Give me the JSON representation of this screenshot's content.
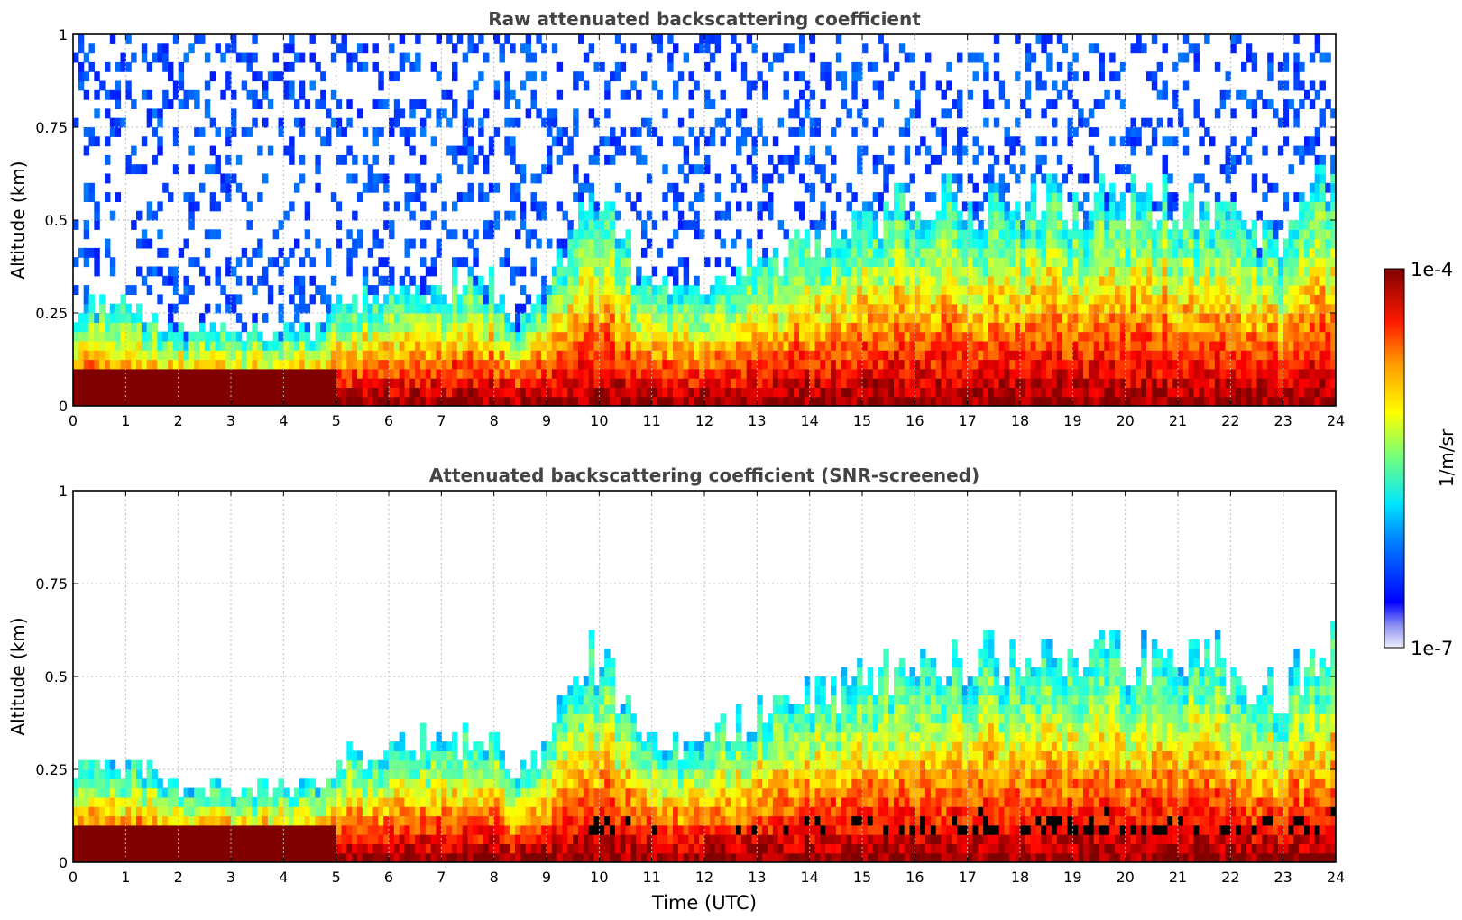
{
  "chart_data": [
    {
      "type": "heatmap",
      "title": "Raw attenuated backscattering coefficient",
      "xlabel": "",
      "ylabel": "Altitude (km)",
      "xlim": [
        0,
        24
      ],
      "ylim": [
        0,
        1
      ],
      "xticks": [
        0,
        1,
        2,
        3,
        4,
        5,
        6,
        7,
        8,
        9,
        10,
        11,
        12,
        13,
        14,
        15,
        16,
        17,
        18,
        19,
        20,
        21,
        22,
        23,
        24
      ],
      "yticks": [
        "0",
        "0.25",
        "0.5",
        "0.75",
        "1"
      ],
      "grid": true,
      "screened": false,
      "colorscale": "jet (log)",
      "approx_profile": {
        "time_utc": [
          0,
          1,
          2,
          3,
          4,
          4.8,
          5.3,
          6,
          7,
          8,
          8.4,
          9,
          9.5,
          10,
          11,
          12,
          13,
          14,
          15,
          16,
          17,
          18,
          19,
          20,
          21,
          21.8,
          22.5,
          23,
          23.8
        ],
        "layer_top_km": [
          0.26,
          0.27,
          0.2,
          0.2,
          0.2,
          0.22,
          0.3,
          0.3,
          0.33,
          0.33,
          0.22,
          0.3,
          0.5,
          0.55,
          0.3,
          0.32,
          0.4,
          0.45,
          0.5,
          0.55,
          0.55,
          0.55,
          0.55,
          0.55,
          0.55,
          0.55,
          0.45,
          0.45,
          0.6
        ]
      }
    },
    {
      "type": "heatmap",
      "title": "Attenuated backscattering coefficient (SNR-screened)",
      "xlabel": "Time (UTC)",
      "ylabel": "Altitude (km)",
      "xlim": [
        0,
        24
      ],
      "ylim": [
        0,
        1
      ],
      "xticks": [
        0,
        1,
        2,
        3,
        4,
        5,
        6,
        7,
        8,
        9,
        10,
        11,
        12,
        13,
        14,
        15,
        16,
        17,
        18,
        19,
        20,
        21,
        22,
        23,
        24
      ],
      "yticks": [
        "0",
        "0.25",
        "0.5",
        "0.75",
        "1"
      ],
      "grid": true,
      "screened": true,
      "colorscale": "jet (log)",
      "approx_profile": {
        "time_utc": [
          0,
          1,
          2,
          3,
          4,
          4.8,
          5.3,
          6,
          7,
          8,
          8.4,
          9,
          9.5,
          10,
          11,
          12,
          13,
          14,
          15,
          16,
          17,
          18,
          19,
          20,
          21,
          21.8,
          22.5,
          23,
          23.8
        ],
        "layer_top_km": [
          0.26,
          0.27,
          0.2,
          0.2,
          0.2,
          0.22,
          0.3,
          0.3,
          0.33,
          0.33,
          0.22,
          0.3,
          0.5,
          0.55,
          0.3,
          0.32,
          0.4,
          0.45,
          0.5,
          0.55,
          0.55,
          0.55,
          0.55,
          0.55,
          0.55,
          0.55,
          0.45,
          0.45,
          0.6
        ]
      }
    }
  ],
  "colorbar": {
    "label": "1/m/sr",
    "max_label": "1e-4",
    "min_label": "1e-7",
    "scale": "log"
  }
}
